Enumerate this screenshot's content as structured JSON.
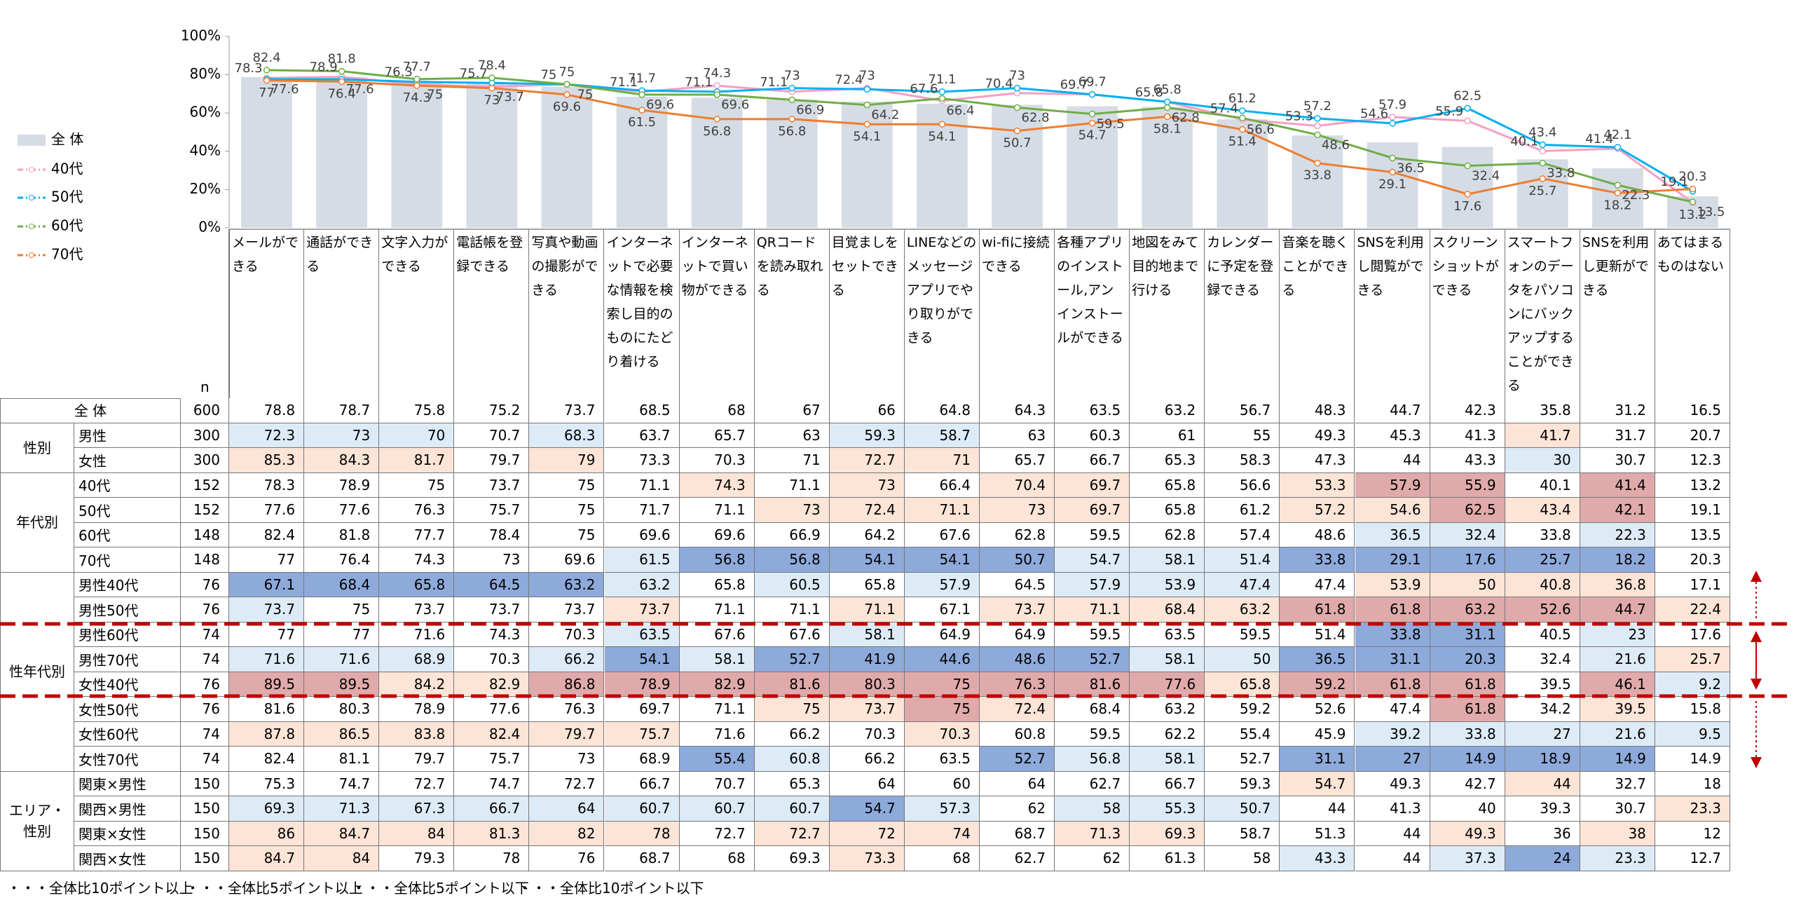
{
  "chart_data": {
    "type": "combo",
    "categories": [
      "メールができる",
      "通話ができる",
      "文字入力ができる",
      "電話帳を登録できる",
      "写真や動画の撮影ができる",
      "インターネットで必要な情報を検索し目的のものにたどり着ける",
      "インターネットで買い物ができる",
      "QRコードを読み取れる",
      "目覚ましをセットできる",
      "LINEなどのメッセージアプリでやり取りができる",
      "wi-fiに接続できる",
      "各種アプリのインストール,アンインストールができる",
      "地図をみて目的地まで行ける",
      "カレンダーに予定を登録できる",
      "音楽を聴くことができる",
      "SNSを利用し閲覧ができる",
      "スクリーンショットができる",
      "スマートフォンのデータをパソコンにバックアップすることができる",
      "SNSを利用し更新ができる",
      "あてはまるものはない"
    ],
    "series": [
      {
        "name": "全 体",
        "mark": "bar",
        "color": "#d6dce5",
        "values": [
          78.8,
          78.7,
          75.8,
          75.2,
          73.7,
          68.5,
          68.0,
          67.0,
          66.0,
          64.8,
          64.3,
          63.5,
          63.2,
          56.7,
          48.3,
          44.7,
          42.3,
          35.8,
          31.2,
          16.5
        ]
      },
      {
        "name": "40代",
        "mark": "line",
        "color": "#f4a0c4",
        "values": [
          78.3,
          78.9,
          75.0,
          73.7,
          75.0,
          71.1,
          74.3,
          71.1,
          73.0,
          66.4,
          70.4,
          69.7,
          65.8,
          56.6,
          53.3,
          57.9,
          55.9,
          40.1,
          41.4,
          13.2
        ]
      },
      {
        "name": "50代",
        "mark": "line",
        "color": "#00b0f0",
        "values": [
          77.6,
          77.6,
          76.3,
          75.7,
          75.0,
          71.7,
          71.1,
          73.0,
          72.4,
          71.1,
          73.0,
          69.7,
          65.8,
          61.2,
          57.2,
          54.6,
          62.5,
          43.4,
          42.1,
          19.1
        ]
      },
      {
        "name": "60代",
        "mark": "line",
        "color": "#70ad47",
        "values": [
          82.4,
          81.8,
          77.7,
          78.4,
          75.0,
          69.6,
          69.6,
          66.9,
          64.2,
          67.6,
          62.8,
          59.5,
          62.8,
          57.4,
          48.6,
          36.5,
          32.4,
          33.8,
          22.3,
          13.5
        ]
      },
      {
        "name": "70代",
        "mark": "line",
        "color": "#ed7d31",
        "values": [
          77.0,
          76.4,
          74.3,
          73.0,
          69.6,
          61.5,
          56.8,
          56.8,
          54.1,
          54.1,
          50.7,
          54.7,
          58.1,
          51.4,
          33.8,
          29.1,
          17.6,
          25.7,
          18.2,
          20.3
        ]
      }
    ],
    "ylim": [
      0,
      100
    ],
    "yticks": [
      {
        "value": 0,
        "label": "0%"
      },
      {
        "value": 20,
        "label": "20%"
      },
      {
        "value": 40,
        "label": "40%"
      },
      {
        "value": 60,
        "label": "60%"
      },
      {
        "value": 80,
        "label": "80%"
      },
      {
        "value": 100,
        "label": "100%"
      }
    ],
    "legend": "left"
  },
  "table": {
    "n_header": "n",
    "total": {
      "label": "全 体",
      "n": 600,
      "values": [
        78.8,
        78.7,
        75.8,
        75.2,
        73.7,
        68.5,
        68.0,
        67.0,
        66.0,
        64.8,
        64.3,
        63.5,
        63.2,
        56.7,
        48.3,
        44.7,
        42.3,
        35.8,
        31.2,
        16.5
      ]
    },
    "groups": [
      {
        "label": "性別",
        "rows": [
          {
            "label": "男性",
            "n": 300,
            "values": [
              72.3,
              73.0,
              70.0,
              70.7,
              68.3,
              63.7,
              65.7,
              63.0,
              59.3,
              58.7,
              63.0,
              60.3,
              61.0,
              55.0,
              49.3,
              45.3,
              41.3,
              41.7,
              31.7,
              20.7
            ]
          },
          {
            "label": "女性",
            "n": 300,
            "values": [
              85.3,
              84.3,
              81.7,
              79.7,
              79.0,
              73.3,
              70.3,
              71.0,
              72.7,
              71.0,
              65.7,
              66.7,
              65.3,
              58.3,
              47.3,
              44.0,
              43.3,
              30.0,
              30.7,
              12.3
            ]
          }
        ]
      },
      {
        "label": "年代別",
        "rows": [
          {
            "label": "40代",
            "n": 152,
            "values": [
              78.3,
              78.9,
              75.0,
              73.7,
              75.0,
              71.1,
              74.3,
              71.1,
              73.0,
              66.4,
              70.4,
              69.7,
              65.8,
              56.6,
              53.3,
              57.9,
              55.9,
              40.1,
              41.4,
              13.2
            ]
          },
          {
            "label": "50代",
            "n": 152,
            "values": [
              77.6,
              77.6,
              76.3,
              75.7,
              75.0,
              71.7,
              71.1,
              73.0,
              72.4,
              71.1,
              73.0,
              69.7,
              65.8,
              61.2,
              57.2,
              54.6,
              62.5,
              43.4,
              42.1,
              19.1
            ]
          },
          {
            "label": "60代",
            "n": 148,
            "values": [
              82.4,
              81.8,
              77.7,
              78.4,
              75.0,
              69.6,
              69.6,
              66.9,
              64.2,
              67.6,
              62.8,
              59.5,
              62.8,
              57.4,
              48.6,
              36.5,
              32.4,
              33.8,
              22.3,
              13.5
            ]
          },
          {
            "label": "70代",
            "n": 148,
            "values": [
              77.0,
              76.4,
              74.3,
              73.0,
              69.6,
              61.5,
              56.8,
              56.8,
              54.1,
              54.1,
              50.7,
              54.7,
              58.1,
              51.4,
              33.8,
              29.1,
              17.6,
              25.7,
              18.2,
              20.3
            ]
          }
        ]
      },
      {
        "label": "性年代別",
        "rows": [
          {
            "label": "男性40代",
            "n": 76,
            "values": [
              67.1,
              68.4,
              65.8,
              64.5,
              63.2,
              63.2,
              65.8,
              60.5,
              65.8,
              57.9,
              64.5,
              57.9,
              53.9,
              47.4,
              47.4,
              53.9,
              50.0,
              40.8,
              36.8,
              17.1
            ]
          },
          {
            "label": "男性50代",
            "n": 76,
            "values": [
              73.7,
              75.0,
              73.7,
              73.7,
              73.7,
              73.7,
              71.1,
              71.1,
              71.1,
              67.1,
              73.7,
              71.1,
              68.4,
              63.2,
              61.8,
              61.8,
              63.2,
              52.6,
              44.7,
              22.4
            ]
          },
          {
            "label": "男性60代",
            "n": 74,
            "values": [
              77.0,
              77.0,
              71.6,
              74.3,
              70.3,
              63.5,
              67.6,
              67.6,
              58.1,
              64.9,
              64.9,
              59.5,
              63.5,
              59.5,
              51.4,
              33.8,
              31.1,
              40.5,
              23.0,
              17.6
            ]
          },
          {
            "label": "男性70代",
            "n": 74,
            "values": [
              71.6,
              71.6,
              68.9,
              70.3,
              66.2,
              54.1,
              58.1,
              52.7,
              41.9,
              44.6,
              48.6,
              52.7,
              58.1,
              50.0,
              36.5,
              31.1,
              20.3,
              32.4,
              21.6,
              25.7
            ]
          },
          {
            "label": "女性40代",
            "n": 76,
            "values": [
              89.5,
              89.5,
              84.2,
              82.9,
              86.8,
              78.9,
              82.9,
              81.6,
              80.3,
              75.0,
              76.3,
              81.6,
              77.6,
              65.8,
              59.2,
              61.8,
              61.8,
              39.5,
              46.1,
              9.2
            ]
          },
          {
            "label": "女性50代",
            "n": 76,
            "values": [
              81.6,
              80.3,
              78.9,
              77.6,
              76.3,
              69.7,
              71.1,
              75.0,
              73.7,
              75.0,
              72.4,
              68.4,
              63.2,
              59.2,
              52.6,
              47.4,
              61.8,
              34.2,
              39.5,
              15.8
            ]
          },
          {
            "label": "女性60代",
            "n": 74,
            "values": [
              87.8,
              86.5,
              83.8,
              82.4,
              79.7,
              75.7,
              71.6,
              66.2,
              70.3,
              70.3,
              60.8,
              59.5,
              62.2,
              55.4,
              45.9,
              39.2,
              33.8,
              27.0,
              21.6,
              9.5
            ]
          },
          {
            "label": "女性70代",
            "n": 74,
            "values": [
              82.4,
              81.1,
              79.7,
              75.7,
              73.0,
              68.9,
              55.4,
              60.8,
              66.2,
              63.5,
              52.7,
              56.8,
              58.1,
              52.7,
              31.1,
              27.0,
              14.9,
              18.9,
              14.9,
              14.9
            ]
          }
        ]
      },
      {
        "label": "エリア・性別",
        "rows": [
          {
            "label": "関東×男性",
            "n": 150,
            "values": [
              75.3,
              74.7,
              72.7,
              74.7,
              72.7,
              66.7,
              70.7,
              65.3,
              64.0,
              60.0,
              64.0,
              62.7,
              66.7,
              59.3,
              54.7,
              49.3,
              42.7,
              44.0,
              32.7,
              18.0
            ]
          },
          {
            "label": "関西×男性",
            "n": 150,
            "values": [
              69.3,
              71.3,
              67.3,
              66.7,
              64.0,
              60.7,
              60.7,
              60.7,
              54.7,
              57.3,
              62.0,
              58.0,
              55.3,
              50.7,
              44.0,
              41.3,
              40.0,
              39.3,
              30.7,
              23.3
            ]
          },
          {
            "label": "関東×女性",
            "n": 150,
            "values": [
              86.0,
              84.7,
              84.0,
              81.3,
              82.0,
              78.0,
              72.7,
              72.7,
              72.0,
              74.0,
              68.7,
              71.3,
              69.3,
              58.7,
              51.3,
              44.0,
              49.3,
              36.0,
              38.0,
              12.0
            ]
          },
          {
            "label": "関西×女性",
            "n": 150,
            "values": [
              84.7,
              84.0,
              79.3,
              78.0,
              76.0,
              68.7,
              68.0,
              69.3,
              73.3,
              68.0,
              62.7,
              62.0,
              61.3,
              58.0,
              43.3,
              44.0,
              37.3,
              24.0,
              23.3,
              12.7
            ]
          }
        ]
      }
    ],
    "legend": [
      {
        "label": "・・・全体比10ポイント以上",
        "color": "#e0aaaa"
      },
      {
        "label": "・・・全体比5ポイント以上",
        "color": "#fce4d6"
      },
      {
        "label": "・・・全体比5ポイント以下",
        "color": "#ddebf7"
      },
      {
        "label": "・・・全体比10ポイント以下",
        "color": "#8eaadb"
      }
    ]
  }
}
